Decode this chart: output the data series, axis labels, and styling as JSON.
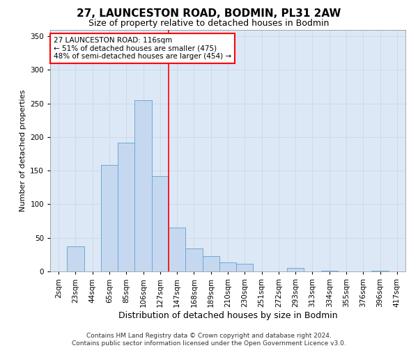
{
  "title1": "27, LAUNCESTON ROAD, BODMIN, PL31 2AW",
  "title2": "Size of property relative to detached houses in Bodmin",
  "xlabel": "Distribution of detached houses by size in Bodmin",
  "ylabel": "Number of detached properties",
  "categories": [
    "2sqm",
    "23sqm",
    "44sqm",
    "65sqm",
    "85sqm",
    "106sqm",
    "127sqm",
    "147sqm",
    "168sqm",
    "189sqm",
    "210sqm",
    "230sqm",
    "251sqm",
    "272sqm",
    "293sqm",
    "313sqm",
    "334sqm",
    "355sqm",
    "376sqm",
    "396sqm",
    "417sqm"
  ],
  "values": [
    0,
    37,
    0,
    158,
    192,
    255,
    142,
    65,
    34,
    23,
    13,
    11,
    0,
    0,
    5,
    0,
    1,
    0,
    0,
    1,
    0
  ],
  "bar_color": "#c5d8f0",
  "bar_edge_color": "#6aaad4",
  "bar_width": 1.0,
  "vline_x": 6.5,
  "vline_color": "red",
  "annotation_text": "27 LAUNCESTON ROAD: 116sqm\n← 51% of detached houses are smaller (475)\n48% of semi-detached houses are larger (454) →",
  "annotation_box_color": "white",
  "annotation_box_edge": "red",
  "ylim": [
    0,
    360
  ],
  "yticks": [
    0,
    50,
    100,
    150,
    200,
    250,
    300,
    350
  ],
  "grid_color": "#c8d4e0",
  "bg_color": "#dce8f5",
  "footer": "Contains HM Land Registry data © Crown copyright and database right 2024.\nContains public sector information licensed under the Open Government Licence v3.0.",
  "title1_fontsize": 11,
  "title2_fontsize": 9,
  "xlabel_fontsize": 9,
  "ylabel_fontsize": 8,
  "tick_fontsize": 7.5,
  "footer_fontsize": 6.5,
  "annot_fontsize": 7.5
}
